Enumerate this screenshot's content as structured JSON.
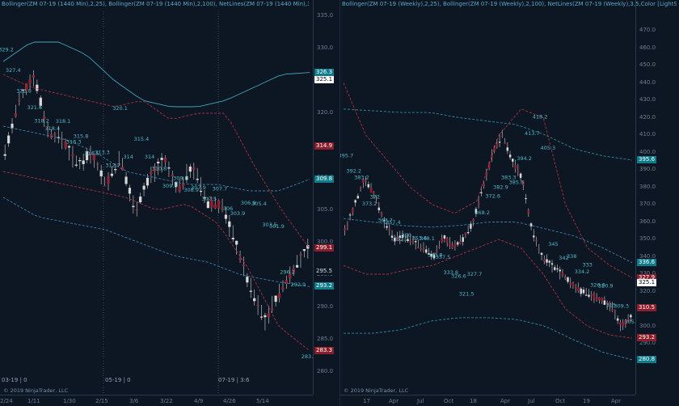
{
  "left": {
    "header": "Bollinger(ZM 07-19 (1440 Min),2,25), Bollinger(ZM 07-19 (1440 Min),2,100), NetLines(ZM 07-19 (1440 Min),3,5,Color [LI",
    "y_ticks": [
      "335.0",
      "330.0",
      "325.0",
      "320.0",
      "315.0",
      "310.0",
      "305.0",
      "300.0",
      "295.0",
      "290.0",
      "285.0",
      "280.0"
    ],
    "price_tags": [
      {
        "label": "326.3",
        "bg": "#0e7c8a",
        "fg": "#ffffff"
      },
      {
        "label": "325.1",
        "bg": "#ffffff",
        "fg": "#000000"
      },
      {
        "label": "314.9",
        "bg": "#8b1e2a",
        "fg": "#ffffff"
      },
      {
        "label": "309.8",
        "bg": "#0e7c8a",
        "fg": "#ffffff"
      },
      {
        "label": "299.1",
        "bg": "#8b1e2a",
        "fg": "#ffffff"
      },
      {
        "label": "295.5",
        "bg": "#0d1623",
        "fg": "#dddddd"
      },
      {
        "label": "293.2",
        "bg": "#0e7c8a",
        "fg": "#ffffff"
      },
      {
        "label": "283.3",
        "bg": "#8b1e2a",
        "fg": "#ffffff"
      }
    ],
    "x_ticks": [
      "2/24",
      "1/11",
      "1/30",
      "2/15",
      "3/6",
      "3/22",
      "4/9",
      "4/26",
      "5/14"
    ],
    "session_labels": [
      "03-19 | 0",
      "05-19 | 0",
      "07-19 | 3:6"
    ],
    "copyright": "© 2019 NinjaTrader, LLC",
    "annotations": [
      "329.2",
      "327.4",
      "322.8",
      "321.6",
      "318.2",
      "318.4",
      "318.1",
      "316.3",
      "315.8",
      "314.5",
      "313.3",
      "312.7",
      "320.1",
      "314",
      "315.4",
      "314",
      "310.8",
      "309.5",
      "309.3",
      "308.9",
      "307.9",
      "307.5",
      "307.7",
      "306",
      "303.9",
      "306.9",
      "305.4",
      "303.5",
      "301.9",
      "296.2",
      "292.9",
      "283.1"
    ]
  },
  "right": {
    "header": "Bollinger(ZM 07-19 (Weekly),2,25), Bollinger(ZM 07-19 (Weekly),2,100), NetLines(ZM 07-19 (Weekly),3,5,Color [LightS",
    "y_ticks": [
      "470.0",
      "460.0",
      "450.0",
      "440.0",
      "430.0",
      "420.0",
      "410.0",
      "400.0",
      "390.0",
      "380.0",
      "370.0",
      "360.0",
      "350.0",
      "340.0",
      "330.0",
      "320.0",
      "310.0",
      "300.0",
      "290.0",
      "280.0"
    ],
    "price_tags": [
      {
        "label": "395.6",
        "bg": "#0e7c8a",
        "fg": "#ffffff"
      },
      {
        "label": "336.6",
        "bg": "#0e7c8a",
        "fg": "#ffffff"
      },
      {
        "label": "327.9",
        "bg": "#8b1e2a",
        "fg": "#ffffff"
      },
      {
        "label": "325.1",
        "bg": "#ffffff",
        "fg": "#000000"
      },
      {
        "label": "310.5",
        "bg": "#8b1e2a",
        "fg": "#ffffff"
      },
      {
        "label": "293.2",
        "bg": "#8b1e2a",
        "fg": "#ffffff"
      },
      {
        "label": "280.8",
        "bg": "#0e7c8a",
        "fg": "#ffffff"
      }
    ],
    "x_ticks": [
      "17",
      "Apr",
      "Jul",
      "Oct",
      "18",
      "Apr",
      "Jul",
      "Oct",
      "19",
      "Apr"
    ],
    "copyright": "© 2019 NinjaTrader, LLC",
    "annotations": [
      "395.7",
      "392.2",
      "383.2",
      "373.2",
      "372",
      "363.7",
      "357.4",
      "352.7",
      "350",
      "353.6",
      "348.1",
      "343.8",
      "337.5",
      "333.8",
      "326.6",
      "321.5",
      "327.7",
      "368.2",
      "372.6",
      "382.9",
      "383.3",
      "385.6",
      "394.2",
      "413.7",
      "418.2",
      "405.3",
      "345",
      "342",
      "338",
      "334.2",
      "333",
      "326.6",
      "320.9",
      "315",
      "309.3",
      "305.4"
    ]
  }
}
